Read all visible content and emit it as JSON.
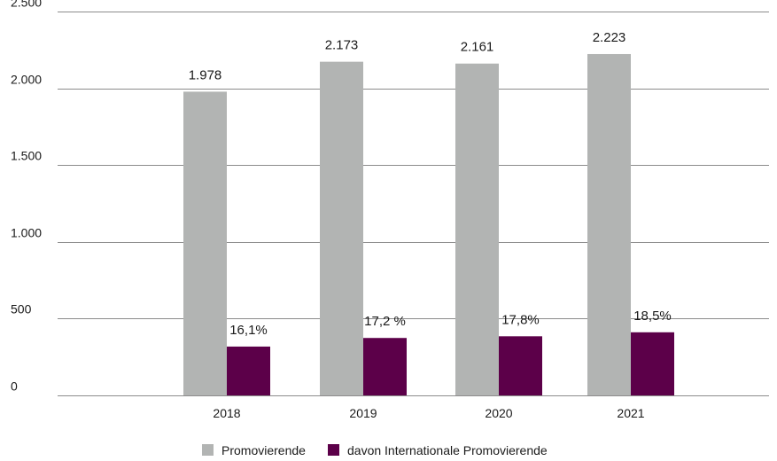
{
  "chart_data": {
    "type": "bar",
    "categories": [
      "2018",
      "2019",
      "2020",
      "2021"
    ],
    "series": [
      {
        "name": "Promovierende",
        "values": [
          1978,
          2173,
          2161,
          2223
        ],
        "labels": [
          "1.978",
          "2.173",
          "2.161",
          "2.223"
        ],
        "color": "#b2b4b3"
      },
      {
        "name": "davon Internationale Promovierende",
        "values": [
          318,
          374,
          385,
          411
        ],
        "labels": [
          "16,1%",
          "17,2 %",
          "17,8%",
          "18,5%"
        ],
        "color": "#5c0049"
      }
    ],
    "y_ticks": [
      {
        "value": 0,
        "label": "0"
      },
      {
        "value": 500,
        "label": "500"
      },
      {
        "value": 1000,
        "label": "1.000"
      },
      {
        "value": 1500,
        "label": "1.500"
      },
      {
        "value": 2000,
        "label": "2.000"
      },
      {
        "value": 2500,
        "label": "2.500"
      }
    ],
    "ylim": [
      0,
      2500
    ],
    "grid": true,
    "legend": "bottom-center",
    "gridline_color": "#8c8c8c"
  }
}
